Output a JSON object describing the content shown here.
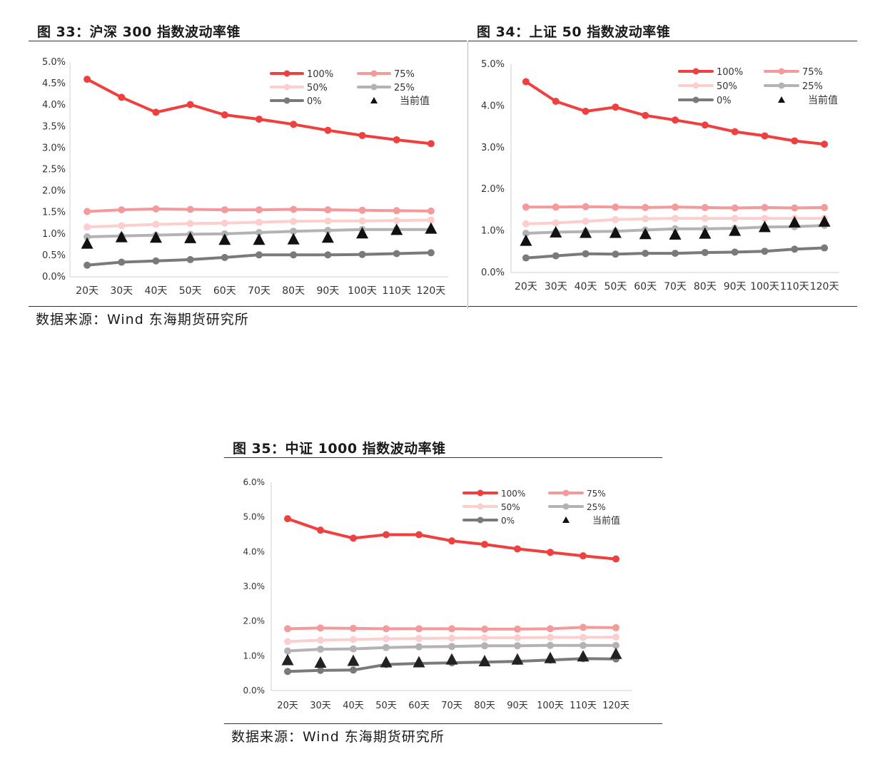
{
  "charts": [
    {
      "figure_title": "图 33：沪深 300 指数波动率锥",
      "source": "数据来源：Wind   东海期货研究所",
      "chart_data": {
        "type": "line",
        "title": "",
        "categories": [
          "20天",
          "30天",
          "40天",
          "50天",
          "60天",
          "70天",
          "80天",
          "90天",
          "100天",
          "110天",
          "120天"
        ],
        "ylim": [
          0,
          5.0
        ],
        "yticks": [
          "0.0%",
          "0.5%",
          "1.0%",
          "1.5%",
          "2.0%",
          "2.5%",
          "3.0%",
          "3.5%",
          "4.0%",
          "4.5%",
          "5.0%"
        ],
        "y_format": "percent",
        "grid": false,
        "legend_position": "top-right",
        "series": [
          {
            "name": "100%",
            "color": "#ef3f3f",
            "width": 4,
            "marker": "circle",
            "values": [
              4.6,
              4.18,
              3.83,
              4.01,
              3.77,
              3.67,
              3.55,
              3.41,
              3.29,
              3.19,
              3.1
            ]
          },
          {
            "name": "75%",
            "color": "#f59a9a",
            "width": 4,
            "marker": "circle",
            "values": [
              1.52,
              1.56,
              1.58,
              1.57,
              1.56,
              1.56,
              1.57,
              1.56,
              1.55,
              1.54,
              1.53
            ]
          },
          {
            "name": "50%",
            "color": "#fccfcf",
            "width": 4,
            "marker": "circle",
            "values": [
              1.16,
              1.19,
              1.22,
              1.24,
              1.25,
              1.27,
              1.29,
              1.3,
              1.3,
              1.31,
              1.32
            ]
          },
          {
            "name": "25%",
            "color": "#b3b3b3",
            "width": 4,
            "marker": "circle",
            "values": [
              0.93,
              0.95,
              0.97,
              0.99,
              1.0,
              1.03,
              1.06,
              1.08,
              1.1,
              1.1,
              1.1
            ]
          },
          {
            "name": "0%",
            "color": "#7a7a7a",
            "width": 4,
            "marker": "circle",
            "values": [
              0.27,
              0.34,
              0.37,
              0.4,
              0.45,
              0.51,
              0.51,
              0.51,
              0.52,
              0.54,
              0.56
            ]
          },
          {
            "name": "当前值",
            "color": "#111111",
            "marker": "triangle",
            "line": false,
            "values": [
              0.76,
              0.91,
              0.9,
              0.89,
              0.85,
              0.85,
              0.86,
              0.9,
              1.0,
              1.08,
              1.11
            ]
          }
        ]
      }
    },
    {
      "figure_title": "图 34：上证 50 指数波动率锥",
      "source": "",
      "chart_data": {
        "type": "line",
        "title": "",
        "categories": [
          "20天",
          "30天",
          "40天",
          "50天",
          "60天",
          "70天",
          "80天",
          "90天",
          "100天",
          "110天",
          "120天"
        ],
        "ylim": [
          0,
          5.0
        ],
        "yticks": [
          "0.0%",
          "1.0%",
          "2.0%",
          "3.0%",
          "4.0%",
          "5.0%"
        ],
        "y_format": "percent",
        "grid": false,
        "legend_position": "top-right",
        "series": [
          {
            "name": "100%",
            "color": "#ef3f3f",
            "width": 4,
            "marker": "circle",
            "values": [
              4.58,
              4.11,
              3.87,
              3.97,
              3.77,
              3.66,
              3.54,
              3.38,
              3.28,
              3.16,
              3.08
            ]
          },
          {
            "name": "75%",
            "color": "#f59a9a",
            "width": 4,
            "marker": "circle",
            "values": [
              1.57,
              1.57,
              1.58,
              1.57,
              1.56,
              1.57,
              1.56,
              1.55,
              1.56,
              1.55,
              1.56
            ]
          },
          {
            "name": "50%",
            "color": "#fccfcf",
            "width": 4,
            "marker": "circle",
            "values": [
              1.17,
              1.19,
              1.23,
              1.27,
              1.29,
              1.3,
              1.3,
              1.3,
              1.3,
              1.3,
              1.3
            ]
          },
          {
            "name": "25%",
            "color": "#b3b3b3",
            "width": 4,
            "marker": "circle",
            "values": [
              0.94,
              0.97,
              0.98,
              0.99,
              1.02,
              1.05,
              1.05,
              1.06,
              1.09,
              1.1,
              1.13
            ]
          },
          {
            "name": "0%",
            "color": "#7a7a7a",
            "width": 4,
            "marker": "circle",
            "values": [
              0.35,
              0.4,
              0.45,
              0.44,
              0.46,
              0.46,
              0.48,
              0.49,
              0.51,
              0.56,
              0.59
            ]
          },
          {
            "name": "当前值",
            "color": "#111111",
            "marker": "triangle",
            "line": false,
            "values": [
              0.75,
              0.95,
              0.94,
              0.94,
              0.91,
              0.9,
              0.92,
              0.99,
              1.08,
              1.19,
              1.21
            ]
          }
        ]
      }
    },
    {
      "figure_title": "图 35：中证 1000 指数波动率锥",
      "source": "数据来源：Wind   东海期货研究所",
      "chart_data": {
        "type": "line",
        "title": "",
        "categories": [
          "20天",
          "30天",
          "40天",
          "50天",
          "60天",
          "70天",
          "80天",
          "90天",
          "100天",
          "110天",
          "120天"
        ],
        "ylim": [
          0,
          6.0
        ],
        "yticks": [
          "0.0%",
          "1.0%",
          "2.0%",
          "3.0%",
          "4.0%",
          "5.0%",
          "6.0%"
        ],
        "y_format": "percent",
        "grid": false,
        "legend_position": "top-right",
        "series": [
          {
            "name": "100%",
            "color": "#ef3f3f",
            "width": 4,
            "marker": "circle",
            "values": [
              4.95,
              4.62,
              4.39,
              4.49,
              4.49,
              4.31,
              4.21,
              4.08,
              3.98,
              3.88,
              3.79
            ]
          },
          {
            "name": "75%",
            "color": "#f59a9a",
            "width": 4,
            "marker": "circle",
            "values": [
              1.78,
              1.8,
              1.79,
              1.78,
              1.78,
              1.78,
              1.77,
              1.77,
              1.78,
              1.82,
              1.81
            ]
          },
          {
            "name": "50%",
            "color": "#fccfcf",
            "width": 4,
            "marker": "circle",
            "values": [
              1.41,
              1.45,
              1.47,
              1.49,
              1.5,
              1.51,
              1.52,
              1.52,
              1.53,
              1.53,
              1.54
            ]
          },
          {
            "name": "25%",
            "color": "#b3b3b3",
            "width": 4,
            "marker": "circle",
            "values": [
              1.14,
              1.19,
              1.2,
              1.24,
              1.26,
              1.27,
              1.29,
              1.29,
              1.3,
              1.3,
              1.3
            ]
          },
          {
            "name": "0%",
            "color": "#7a7a7a",
            "width": 4,
            "marker": "circle",
            "values": [
              0.55,
              0.58,
              0.59,
              0.75,
              0.78,
              0.8,
              0.82,
              0.84,
              0.88,
              0.92,
              0.91
            ]
          },
          {
            "name": "当前值",
            "color": "#222222",
            "marker": "triangle",
            "line": false,
            "values": [
              0.86,
              0.79,
              0.84,
              0.8,
              0.8,
              0.88,
              0.83,
              0.88,
              0.92,
              0.97,
              1.04
            ]
          }
        ]
      }
    }
  ]
}
